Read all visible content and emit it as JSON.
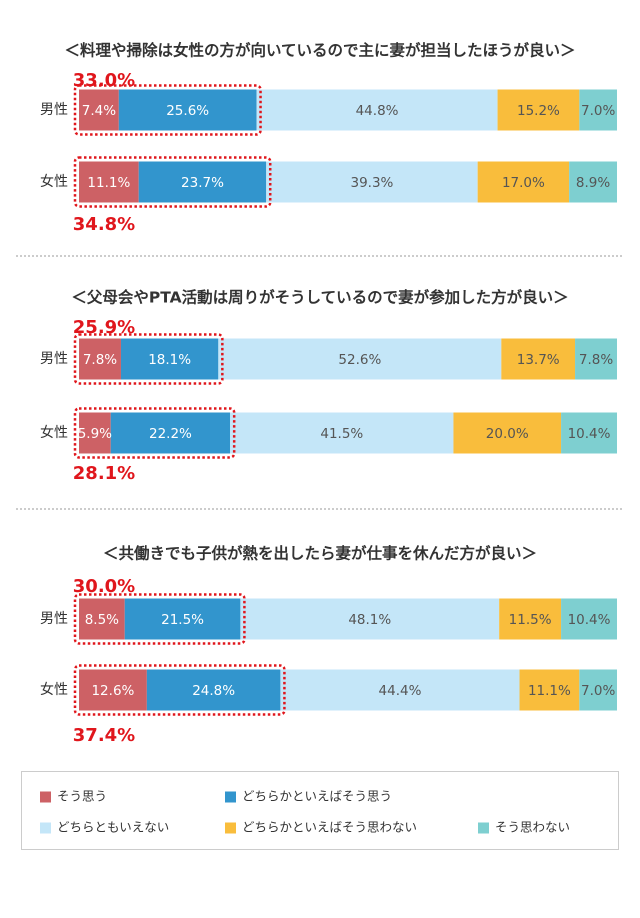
{
  "chart_data": {
    "type": "bar",
    "orientation": "horizontal",
    "stacked": true,
    "normalized_percent": true,
    "legend_position": "bottom",
    "colors": {
      "agree": "#cd6165",
      "somewhat_agree": "#3295cd",
      "neutral": "#c4e6f8",
      "somewhat_disagree": "#f9bd3c",
      "disagree": "#7ecfd0",
      "highlight": "#e0161c"
    },
    "legend": [
      {
        "key": "agree",
        "label": "そう思う"
      },
      {
        "key": "somewhat_agree",
        "label": "どちらかといえばそう思う"
      },
      {
        "key": "neutral",
        "label": "どちらともいえない"
      },
      {
        "key": "somewhat_disagree",
        "label": "どちらかといえばそう思わない"
      },
      {
        "key": "disagree",
        "label": "そう思わない"
      }
    ],
    "sections": [
      {
        "title": "＜料理や掃除は女性の方が向いているので主に妻が担当したほうが良い＞",
        "rows": [
          {
            "group": "男性",
            "values": [
              7.4,
              25.6,
              44.8,
              15.2,
              7.0
            ],
            "labels": [
              "7.4%",
              "25.6%",
              "44.8%",
              "15.2%",
              "7.0%"
            ],
            "sum": "33.0%"
          },
          {
            "group": "女性",
            "values": [
              11.1,
              23.7,
              39.3,
              17.0,
              8.9
            ],
            "labels": [
              "11.1%",
              "23.7%",
              "39.3%",
              "17.0%",
              "8.9%"
            ],
            "sum": "34.8%"
          }
        ]
      },
      {
        "title": "＜父母会やPTA活動は周りがそうしているので妻が参加した方が良い＞",
        "rows": [
          {
            "group": "男性",
            "values": [
              7.8,
              18.1,
              52.6,
              13.7,
              7.8
            ],
            "labels": [
              "7.8%",
              "18.1%",
              "52.6%",
              "13.7%",
              "7.8%"
            ],
            "sum": "25.9%"
          },
          {
            "group": "女性",
            "values": [
              5.9,
              22.2,
              41.5,
              20.0,
              10.4
            ],
            "labels": [
              "5.9%",
              "22.2%",
              "41.5%",
              "20.0%",
              "10.4%"
            ],
            "sum": "28.1%"
          }
        ]
      },
      {
        "title": "＜共働きでも子供が熱を出したら妻が仕事を休んだ方が良い＞",
        "rows": [
          {
            "group": "男性",
            "values": [
              8.5,
              21.5,
              48.1,
              11.5,
              10.4
            ],
            "labels": [
              "8.5%",
              "21.5%",
              "48.1%",
              "11.5%",
              "10.4%"
            ],
            "sum": "30.0%"
          },
          {
            "group": "女性",
            "values": [
              12.6,
              24.8,
              44.4,
              11.1,
              7.0
            ],
            "labels": [
              "12.6%",
              "24.8%",
              "44.4%",
              "11.1%",
              "7.0%"
            ],
            "sum": "37.4%"
          }
        ]
      }
    ]
  }
}
